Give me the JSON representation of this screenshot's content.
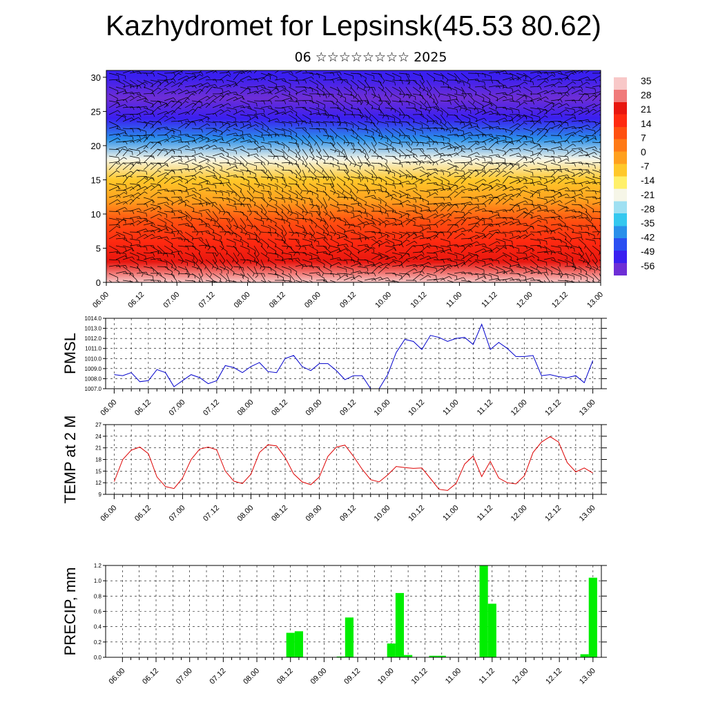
{
  "header": {
    "title": "Kazhydromet for Lepsinsk(45.53 80.62)",
    "subtitle": "06 ☆☆☆☆☆☆☆☆ 2025"
  },
  "colors": {
    "pmsl_line": "#0000cc",
    "temp_line": "#dd0000",
    "precip_bar": "#00ee00",
    "grid": "#000000"
  },
  "time_ticks": [
    "06.00",
    "06.12",
    "07.00",
    "07.12",
    "08.00",
    "08.12",
    "09.00",
    "09.12",
    "10.00",
    "10.12",
    "11.00",
    "11.12",
    "12.00",
    "12.12",
    "13.00"
  ],
  "chart_data": [
    {
      "type": "heatmap",
      "name_hint": "cross-section",
      "y_ticks": [
        "0",
        "5",
        "10",
        "15",
        "20",
        "25",
        "30"
      ],
      "ylim": [
        0,
        31
      ],
      "colorbar_labels": [
        "35",
        "28",
        "21",
        "14",
        "7",
        "0",
        "-7",
        "-14",
        "-21",
        "-28",
        "-35",
        "-42",
        "-49",
        "-56"
      ],
      "colorbar_range": [
        -63,
        40
      ],
      "colorbar_colors": [
        "#6e2ed6",
        "#3a1ff0",
        "#2b4ff2",
        "#2a90ea",
        "#35c8ef",
        "#9fe0f2",
        "#f6f6e8",
        "#fff06a",
        "#ffc82a",
        "#ffa01e",
        "#ff7a16",
        "#ff5010",
        "#ff2a10",
        "#e8160f",
        "#f07a7a",
        "#f8c8c8"
      ],
      "height_levels": [
        0,
        3,
        6,
        9,
        12,
        15,
        18,
        21,
        24,
        27,
        30
      ],
      "temperature_profile": [
        35,
        27,
        18,
        9,
        1,
        -9,
        -24,
        -38,
        -55,
        -60,
        -53
      ],
      "wind_barbs": true
    },
    {
      "type": "line",
      "ylabel": "PMSL",
      "y_ticks": [
        "1007.0",
        "1008.0",
        "1009.0",
        "1010.0",
        "1011.0",
        "1012.0",
        "1013.0",
        "1014.0"
      ],
      "ylim": [
        1007,
        1014
      ],
      "x": [
        0,
        3,
        6,
        9,
        12,
        15,
        18,
        21,
        24,
        27,
        30,
        33,
        36,
        39,
        42,
        45,
        48,
        51,
        54,
        57,
        60,
        63,
        66,
        69,
        72,
        75,
        78,
        81,
        84,
        87,
        90,
        93,
        96,
        99,
        102,
        105,
        108,
        111,
        114,
        117,
        120,
        123,
        126,
        129,
        132,
        135,
        138,
        141,
        144,
        147,
        150,
        153,
        156,
        159,
        162,
        165,
        168
      ],
      "values": [
        1008.4,
        1008.3,
        1008.6,
        1007.7,
        1007.8,
        1008.9,
        1008.6,
        1007.2,
        1007.8,
        1008.4,
        1008.1,
        1007.5,
        1007.8,
        1009.3,
        1009.1,
        1008.6,
        1009.2,
        1009.6,
        1008.7,
        1008.6,
        1010.0,
        1010.3,
        1009.2,
        1008.8,
        1009.5,
        1009.5,
        1008.8,
        1007.9,
        1008.3,
        1008.3,
        1007.0,
        1007.0,
        1008.4,
        1010.6,
        1011.9,
        1011.7,
        1010.9,
        1012.3,
        1012.1,
        1011.7,
        1012.0,
        1012.1,
        1011.4,
        1013.4,
        1010.9,
        1011.6,
        1011.0,
        1010.2,
        1010.2,
        1010.3,
        1008.3,
        1008.4,
        1008.2,
        1008.1,
        1008.3,
        1007.6,
        1009.8
      ],
      "xlim": [
        -3,
        171
      ],
      "grid": true
    },
    {
      "type": "line",
      "ylabel": "TEMP at 2 M",
      "y_ticks": [
        "9",
        "12",
        "15",
        "18",
        "21",
        "24",
        "27"
      ],
      "ylim": [
        9,
        27
      ],
      "x": [
        0,
        3,
        6,
        9,
        12,
        15,
        18,
        21,
        24,
        27,
        30,
        33,
        36,
        39,
        42,
        45,
        48,
        51,
        54,
        57,
        60,
        63,
        66,
        69,
        72,
        75,
        78,
        81,
        84,
        87,
        90,
        93,
        96,
        99,
        102,
        105,
        108,
        111,
        114,
        117,
        120,
        123,
        126,
        129,
        132,
        135,
        138,
        141,
        144,
        147,
        150,
        153,
        156,
        159,
        162,
        165,
        168
      ],
      "values": [
        12.3,
        18.0,
        20.4,
        21.2,
        19.5,
        13.5,
        11.0,
        10.5,
        13.2,
        18.0,
        20.7,
        21.2,
        20.5,
        15.0,
        12.4,
        11.8,
        14.2,
        19.8,
        21.8,
        21.5,
        18.5,
        14.3,
        12.2,
        11.5,
        13.5,
        18.8,
        21.2,
        21.7,
        18.8,
        15.5,
        12.8,
        12.2,
        14.0,
        16.2,
        15.9,
        15.7,
        15.8,
        13.1,
        10.3,
        10.0,
        11.8,
        16.8,
        18.9,
        13.6,
        17.5,
        13.2,
        12.0,
        11.7,
        13.8,
        19.8,
        22.5,
        23.9,
        22.5,
        17.2,
        14.8,
        15.8,
        14.5
      ],
      "xlim": [
        -3,
        171
      ],
      "grid": true
    },
    {
      "type": "bar",
      "ylabel": "PRECIP, mm",
      "y_ticks": [
        "0.0",
        "0.2",
        "0.4",
        "0.6",
        "0.8",
        "1.0",
        "1.2"
      ],
      "ylim": [
        0,
        1.2
      ],
      "x": [
        60,
        63,
        78,
        81,
        96,
        99,
        102,
        111,
        114,
        129,
        132,
        165,
        168
      ],
      "values": [
        0.32,
        0.34,
        0.01,
        0.52,
        0.18,
        0.84,
        0.03,
        0.02,
        0.02,
        1.2,
        0.7,
        0.04,
        1.04
      ],
      "bar_width": 3,
      "xlim": [
        -6,
        171
      ],
      "grid": true
    }
  ]
}
